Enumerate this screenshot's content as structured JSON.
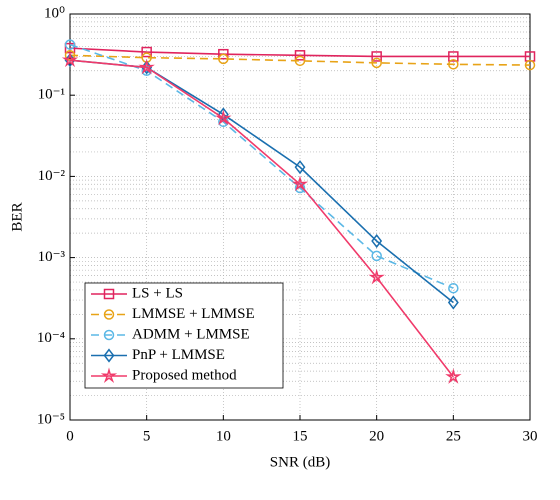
{
  "chart_data": {
    "type": "line",
    "xlabel": "SNR (dB)",
    "ylabel": "BER",
    "xlim": [
      0,
      30
    ],
    "xticks": [
      0,
      5,
      10,
      15,
      20,
      25,
      30
    ],
    "ylim": [
      1e-05,
      1
    ],
    "yticks": [
      {
        "value": 1,
        "label": "10⁰"
      },
      {
        "value": 0.1,
        "label": "10⁻¹"
      },
      {
        "value": 0.01,
        "label": "10⁻²"
      },
      {
        "value": 0.001,
        "label": "10⁻³"
      },
      {
        "value": 0.0001,
        "label": "10⁻⁴"
      },
      {
        "value": 1e-05,
        "label": "10⁻⁵"
      }
    ],
    "log_y": true,
    "grid": true,
    "legend": "lower left",
    "x": [
      0,
      5,
      10,
      15,
      20,
      25,
      30
    ],
    "series": [
      {
        "name": "LS + LS",
        "color": "#e0245e",
        "marker": "square",
        "dash": false,
        "values": [
          0.38,
          0.34,
          0.32,
          0.31,
          0.3,
          0.3,
          0.3
        ]
      },
      {
        "name": "LMMSE + LMMSE",
        "color": "#e8a317",
        "marker": "circle",
        "dash": true,
        "values": [
          0.31,
          0.29,
          0.28,
          0.265,
          0.25,
          0.24,
          0.235
        ]
      },
      {
        "name": "ADMM + LMMSE",
        "color": "#5bb8e6",
        "marker": "circle",
        "dash": true,
        "values": [
          0.42,
          0.2,
          0.047,
          0.0072,
          0.00105,
          0.00042,
          null
        ]
      },
      {
        "name": "PnP + LMMSE",
        "color": "#1a6faf",
        "marker": "diamond",
        "dash": false,
        "values": [
          0.27,
          0.22,
          0.058,
          0.013,
          0.0016,
          0.00028,
          null
        ]
      },
      {
        "name": "Proposed method",
        "color": "#f03a6a",
        "marker": "star",
        "dash": false,
        "values": [
          0.27,
          0.22,
          0.052,
          0.008,
          0.00057,
          3.4e-05,
          null
        ]
      }
    ]
  }
}
